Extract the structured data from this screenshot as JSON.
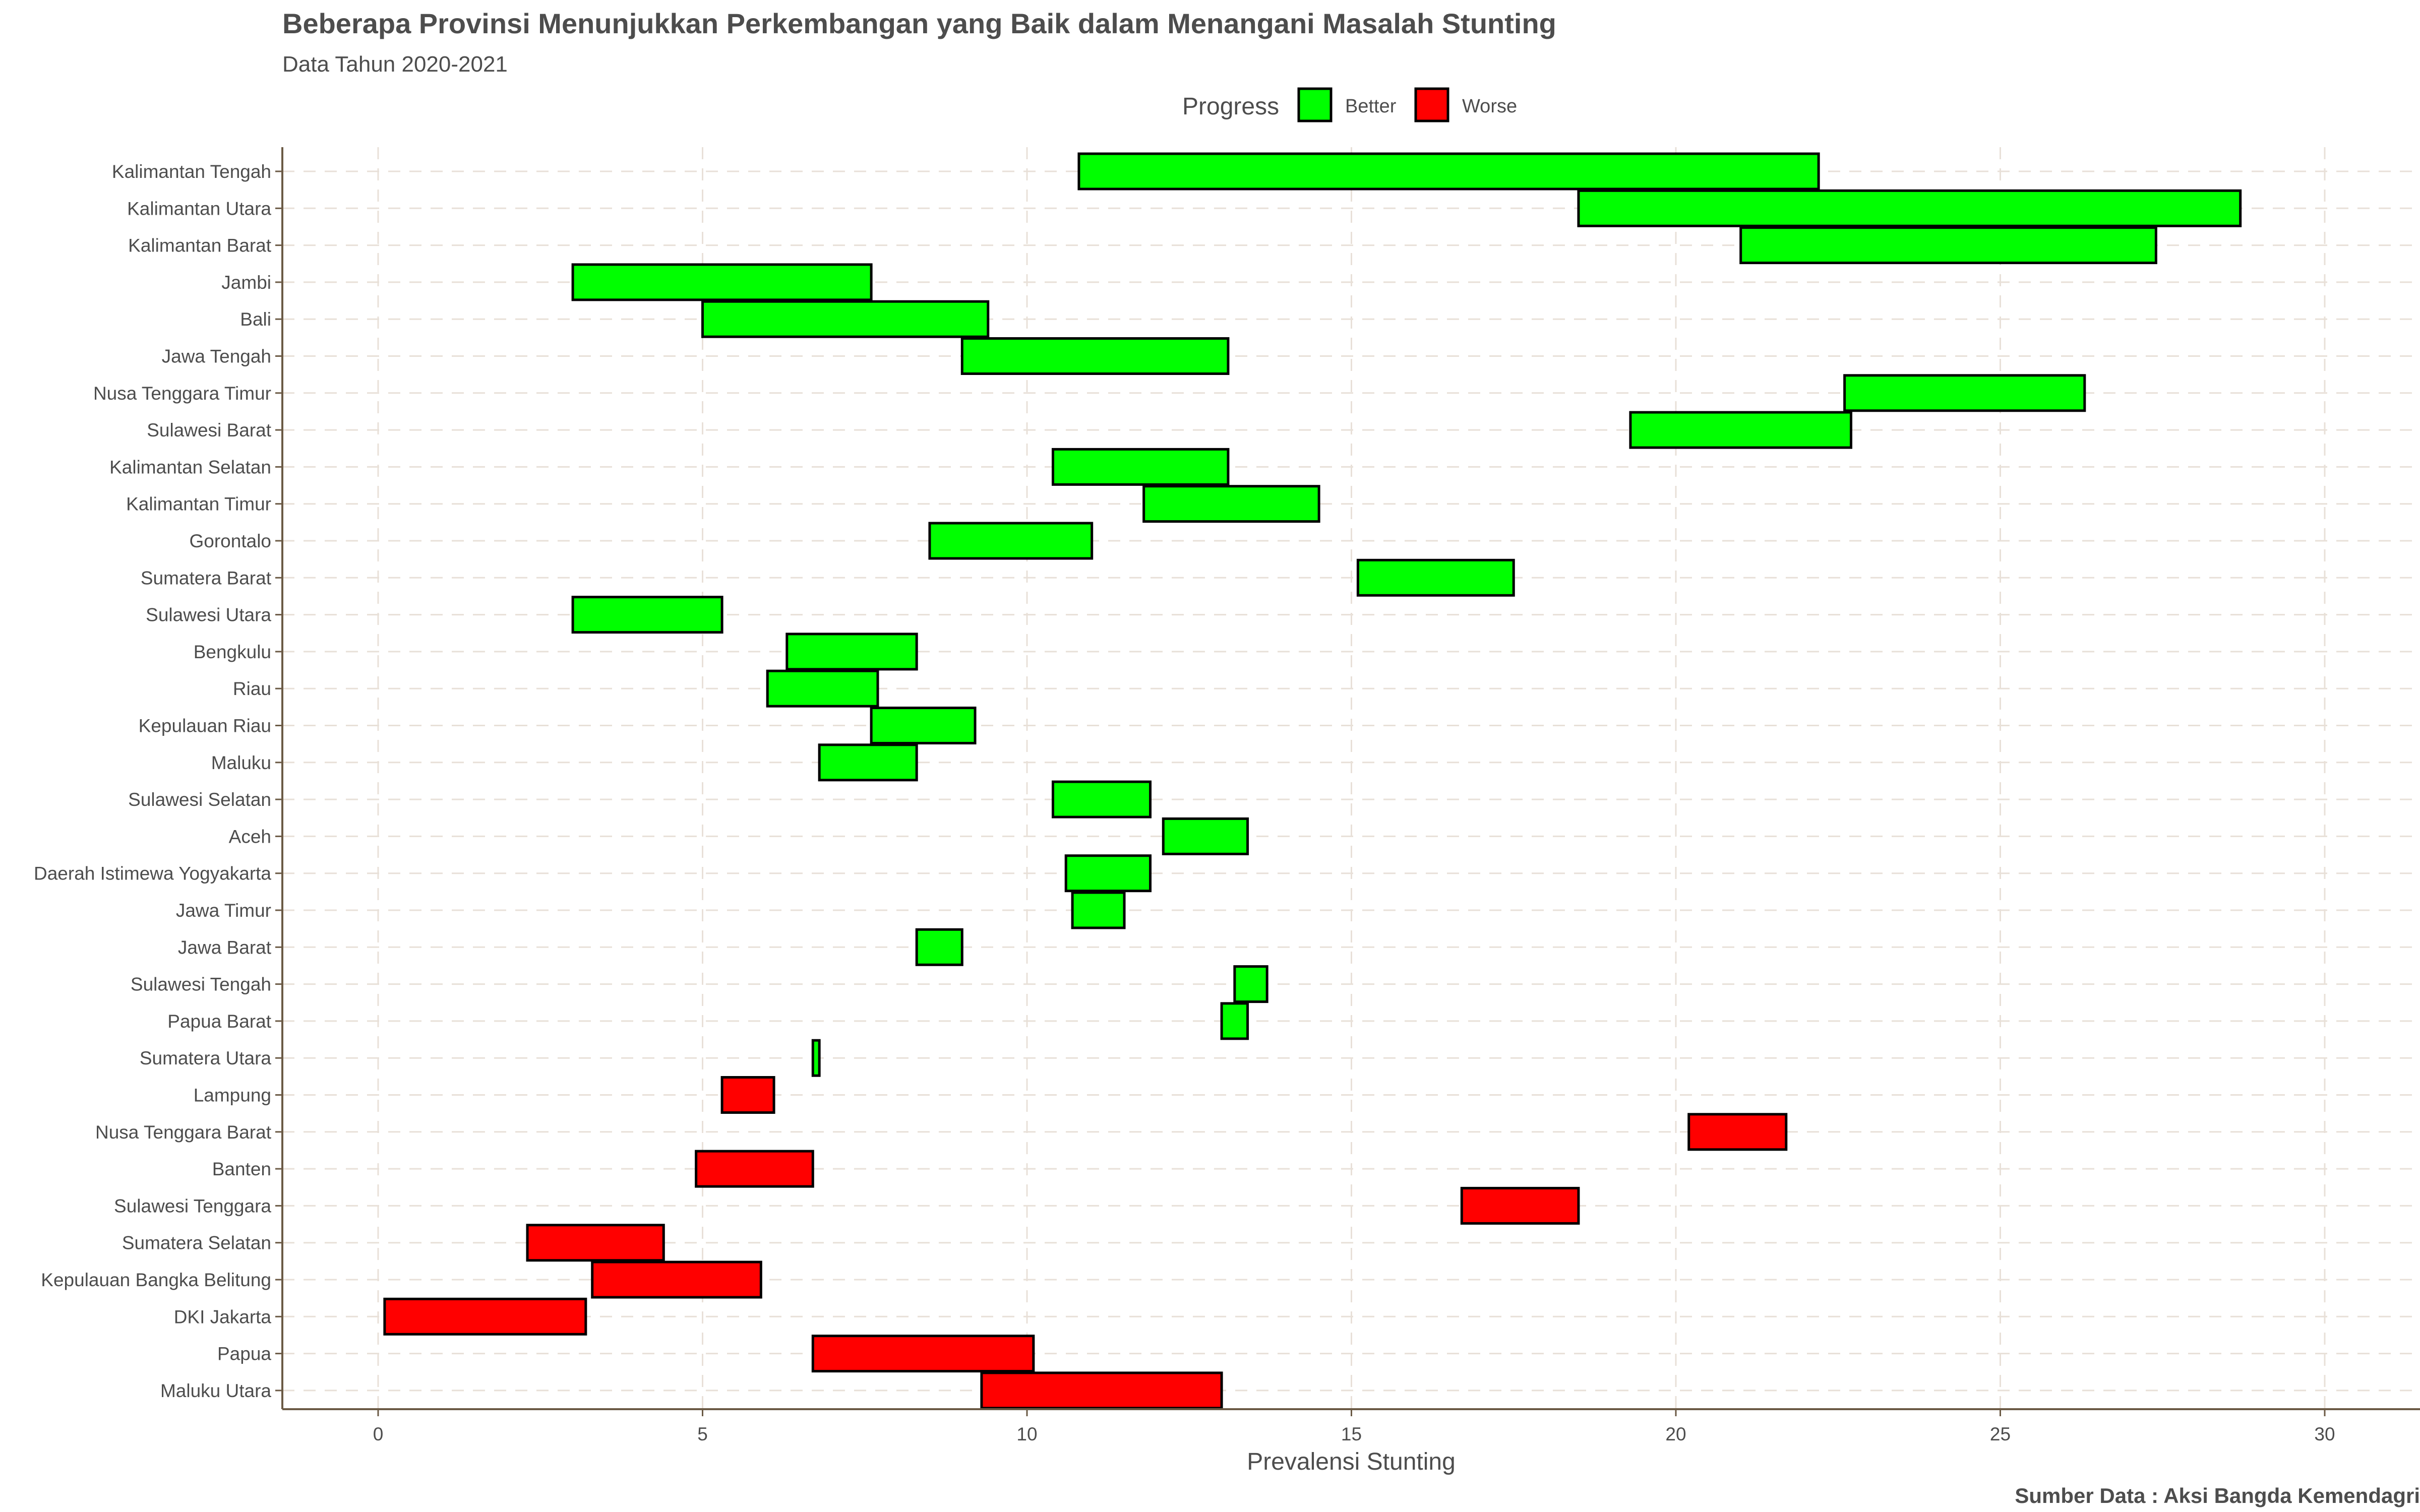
{
  "chart_data": {
    "type": "bar",
    "orientation": "horizontal-range",
    "title": "Beberapa Provinsi Menunjukkan Perkembangan yang Baik dalam Menangani Masalah Stunting",
    "subtitle": "Data Tahun 2020-2021",
    "xlabel": "Prevalensi Stunting",
    "caption": "Sumber Data : Aksi Bangda Kemendagri",
    "xlim": [
      -1.5,
      31.5
    ],
    "xticks": [
      "0",
      "5",
      "10",
      "15",
      "20",
      "25",
      "30"
    ],
    "grid": true,
    "legend": {
      "title": "Progress",
      "placement": "top",
      "entries": [
        {
          "label": "Better",
          "color": "#00ff00"
        },
        {
          "label": "Worse",
          "color": "#ff0000"
        }
      ]
    },
    "categories": [
      "Kalimantan Tengah",
      "Kalimantan Utara",
      "Kalimantan Barat",
      "Jambi",
      "Bali",
      "Jawa Tengah",
      "Nusa Tenggara Timur",
      "Sulawesi Barat",
      "Kalimantan Selatan",
      "Kalimantan Timur",
      "Gorontalo",
      "Sumatera Barat",
      "Sulawesi Utara",
      "Bengkulu",
      "Riau",
      "Kepulauan Riau",
      "Maluku",
      "Sulawesi Selatan",
      "Aceh",
      "Daerah Istimewa Yogyakarta",
      "Jawa Timur",
      "Jawa Barat",
      "Sulawesi Tengah",
      "Papua Barat",
      "Sumatera Utara",
      "Lampung",
      "Nusa Tenggara Barat",
      "Banten",
      "Sulawesi Tenggara",
      "Sumatera Selatan",
      "Kepulauan Bangka Belitung",
      "DKI Jakarta",
      "Papua",
      "Maluku Utara"
    ],
    "ranges": [
      [
        10.8,
        22.2
      ],
      [
        18.5,
        28.7
      ],
      [
        21.0,
        27.4
      ],
      [
        3.0,
        7.6
      ],
      [
        5.0,
        9.4
      ],
      [
        9.0,
        13.1
      ],
      [
        22.6,
        26.3
      ],
      [
        19.3,
        22.7
      ],
      [
        10.4,
        13.1
      ],
      [
        11.8,
        14.5
      ],
      [
        8.5,
        11.0
      ],
      [
        15.1,
        17.5
      ],
      [
        3.0,
        5.3
      ],
      [
        6.3,
        8.3
      ],
      [
        6.0,
        7.7
      ],
      [
        7.6,
        9.2
      ],
      [
        6.8,
        8.3
      ],
      [
        10.4,
        11.9
      ],
      [
        12.1,
        13.4
      ],
      [
        10.6,
        11.9
      ],
      [
        10.7,
        11.5
      ],
      [
        8.3,
        9.0
      ],
      [
        13.2,
        13.7
      ],
      [
        13.0,
        13.4
      ],
      [
        6.7,
        6.8
      ],
      [
        5.3,
        6.1
      ],
      [
        20.2,
        21.7
      ],
      [
        4.9,
        6.7
      ],
      [
        16.7,
        18.5
      ],
      [
        2.3,
        4.4
      ],
      [
        3.3,
        5.9
      ],
      [
        0.1,
        3.2
      ],
      [
        6.7,
        10.1
      ],
      [
        9.3,
        13.0
      ]
    ],
    "progress": [
      "Better",
      "Better",
      "Better",
      "Better",
      "Better",
      "Better",
      "Better",
      "Better",
      "Better",
      "Better",
      "Better",
      "Better",
      "Better",
      "Better",
      "Better",
      "Better",
      "Better",
      "Better",
      "Better",
      "Better",
      "Better",
      "Better",
      "Better",
      "Better",
      "Better",
      "Worse",
      "Worse",
      "Worse",
      "Worse",
      "Worse",
      "Worse",
      "Worse",
      "Worse",
      "Worse"
    ]
  }
}
